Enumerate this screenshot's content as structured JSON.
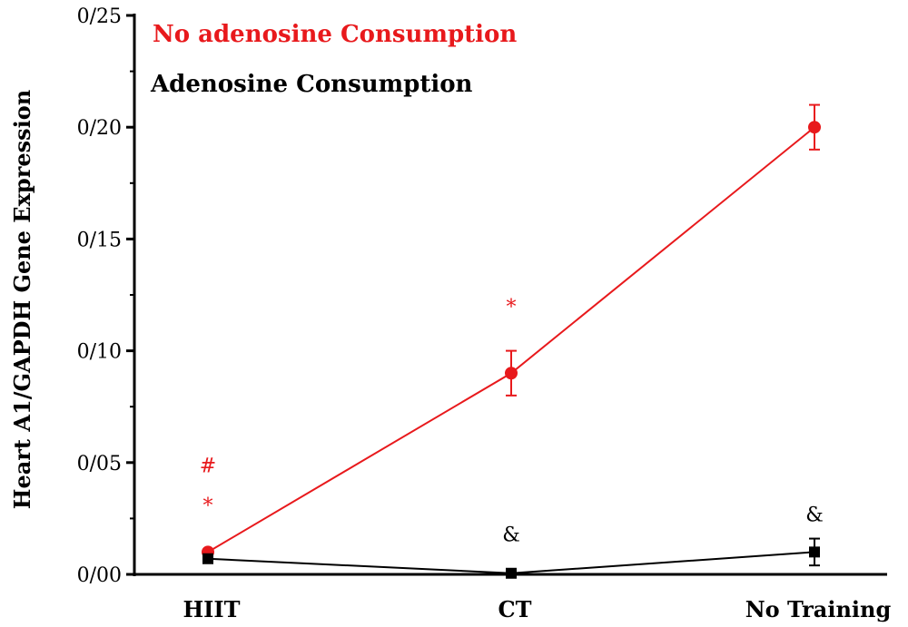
{
  "chart_data": {
    "type": "line",
    "categories": [
      "HIIT",
      "CT",
      "No Training"
    ],
    "ylabel": "Heart A1/GAPDH Gene Expression",
    "ylim": [
      0,
      0.25
    ],
    "yticks": [
      "0/00",
      "0/05",
      "0/10",
      "0/15",
      "0/20",
      "0/25"
    ],
    "yticks_values": [
      0,
      0.05,
      0.1,
      0.15,
      0.2,
      0.25
    ],
    "grid": false,
    "legend_position": "top-left",
    "series": [
      {
        "name": "No adenosine Consumption",
        "color": "#e8191c",
        "marker": "circle",
        "values": [
          0.01,
          0.09,
          0.2
        ],
        "errors": [
          0.0,
          0.01,
          0.01
        ]
      },
      {
        "name": "Adenosine Consumption",
        "color": "#000000",
        "marker": "square",
        "values": [
          0.007,
          0.0005,
          0.01
        ],
        "errors": [
          0.0,
          0.0,
          0.006
        ]
      }
    ],
    "annotations": [
      {
        "text": "#",
        "category": 0,
        "y": 0.049,
        "color": "#e8191c"
      },
      {
        "text": "*",
        "category": 0,
        "y": 0.031,
        "color": "#e8191c"
      },
      {
        "text": "*",
        "category": 1,
        "y": 0.12,
        "color": "#e8191c"
      },
      {
        "text": "&",
        "category": 1,
        "y": 0.018,
        "color": "#000000"
      },
      {
        "text": "&",
        "category": 2,
        "y": 0.027,
        "color": "#000000"
      }
    ]
  }
}
